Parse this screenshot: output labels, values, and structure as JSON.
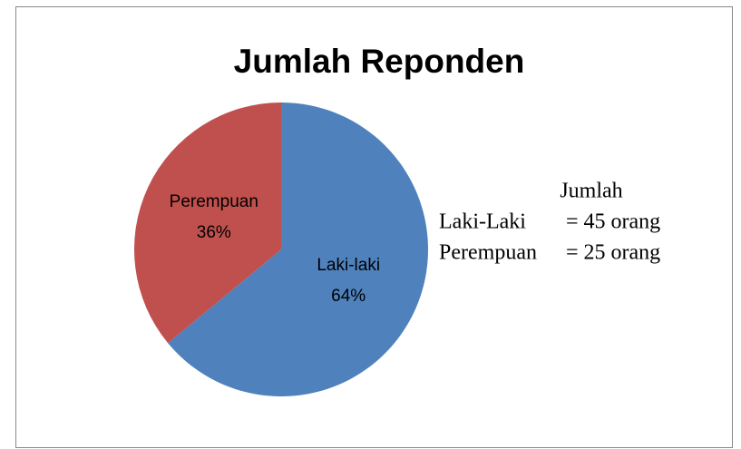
{
  "chart_data": {
    "type": "pie",
    "title": "Jumlah Reponden",
    "categories": [
      "Laki-laki",
      "Perempuan"
    ],
    "values": [
      64,
      36
    ],
    "value_labels": [
      "64%",
      "36%"
    ],
    "colors": [
      "#4f81bd",
      "#c0504d"
    ],
    "annotation": {
      "title": "Jumlah",
      "rows": [
        [
          "Laki-Laki",
          "= 45 orang"
        ],
        [
          "Perempuan",
          "= 25 orang"
        ]
      ]
    }
  }
}
